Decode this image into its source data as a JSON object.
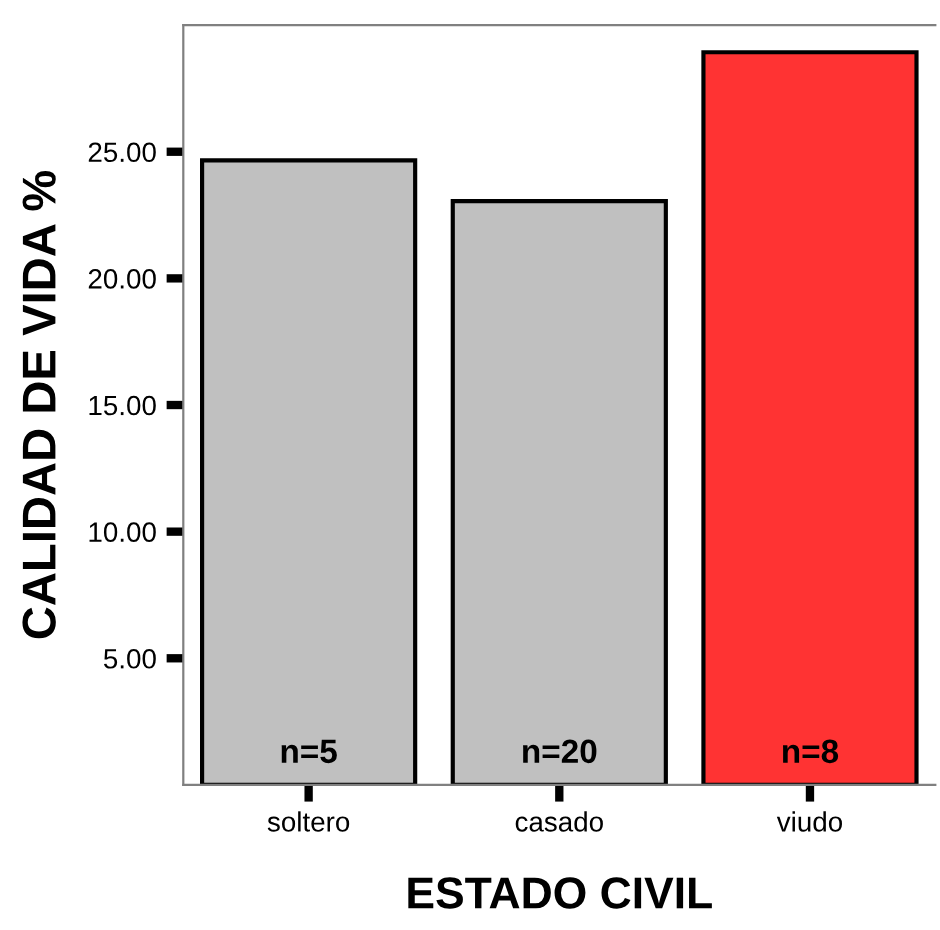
{
  "chart_data": {
    "type": "bar",
    "xlabel": "ESTADO CIVIL",
    "ylabel": "CALIDAD DE VIDA %",
    "categories": [
      "soltero",
      "casado",
      "viudo"
    ],
    "values": [
      24.66,
      23.05,
      28.93
    ],
    "colors": [
      "#c0c0c0",
      "#c0c0c0",
      "#ff3333"
    ],
    "ylim": [
      0,
      30
    ],
    "yticks": [
      {
        "value": 5,
        "label": "5.00"
      },
      {
        "value": 10,
        "label": "10.00"
      },
      {
        "value": 15,
        "label": "15.00"
      },
      {
        "value": 20,
        "label": "20.00"
      },
      {
        "value": 25,
        "label": "25.00"
      }
    ],
    "annotations": [
      "n=5",
      "n=20",
      "n=8"
    ],
    "grid": false
  }
}
